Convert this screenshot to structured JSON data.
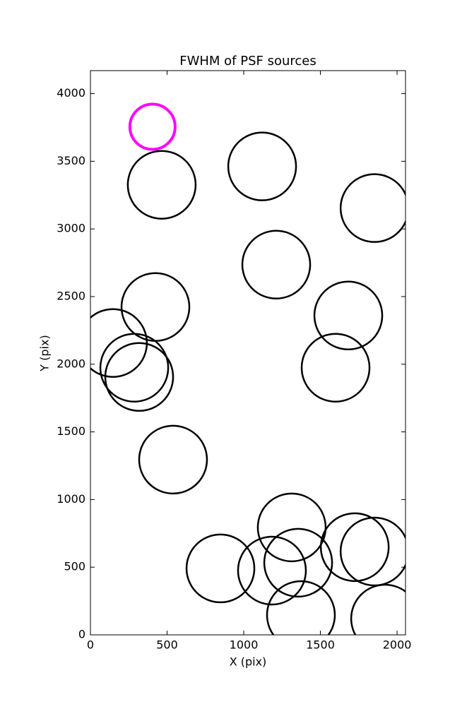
{
  "chart_data": {
    "type": "scatter",
    "title": "FWHM of PSF sources",
    "x_label": "X (pix)",
    "y_label": "Y (pix)",
    "xlim": [
      0,
      2055
    ],
    "ylim": [
      0,
      4170
    ],
    "xticks": [
      0,
      500,
      1000,
      1500,
      2000
    ],
    "yticks": [
      0,
      500,
      1000,
      1500,
      2000,
      2500,
      3000,
      3500,
      4000
    ],
    "grid": false,
    "marker": "open-circle",
    "series": [
      {
        "color": "#000000",
        "x": [
          465,
          1120,
          1853,
          1212,
          424,
          1682,
          147,
          286,
          318,
          1599,
          539,
          1313,
          848,
          1184,
          1355,
          1724,
          1853,
          1373,
          1922
        ],
        "values": [
          3326,
          3462,
          3154,
          2736,
          2423,
          2360,
          2157,
          1974,
          1906,
          1974,
          1295,
          794,
          491,
          475,
          533,
          648,
          616,
          146,
          120
        ]
      },
      {
        "color": "#ff00ff",
        "x": [
          405
        ],
        "values": [
          3755
        ]
      }
    ]
  }
}
